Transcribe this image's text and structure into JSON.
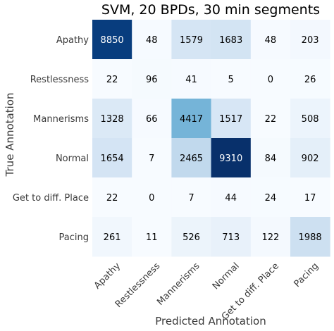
{
  "chart_data": {
    "type": "heatmap",
    "title": "SVM, 20 BPDs, 30 min segments",
    "xlabel": "Predicted Annotation",
    "ylabel": "True Annotation",
    "x_categories": [
      "Apathy",
      "Restlessness",
      "Mannerisms",
      "Normal",
      "Get to diff. Place",
      "Pacing"
    ],
    "y_categories": [
      "Apathy",
      "Restlessness",
      "Mannerisms",
      "Normal",
      "Get to diff. Place",
      "Pacing"
    ],
    "values": [
      [
        8850,
        48,
        1579,
        1683,
        48,
        203
      ],
      [
        22,
        96,
        41,
        5,
        0,
        26
      ],
      [
        1328,
        66,
        4417,
        1517,
        22,
        508
      ],
      [
        1654,
        7,
        2465,
        9310,
        84,
        902
      ],
      [
        22,
        0,
        7,
        44,
        24,
        17
      ],
      [
        261,
        11,
        526,
        713,
        122,
        1988
      ]
    ],
    "colormap": "Blues",
    "color_low": "#f7fbff",
    "color_high": "#08306b",
    "grid": false,
    "legend": "none"
  }
}
